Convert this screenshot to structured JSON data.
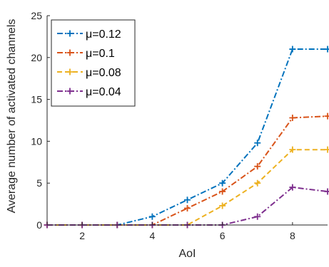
{
  "chart_data": {
    "type": "line",
    "title": "",
    "xlabel": "AoI",
    "ylabel": "Average number of activated channels",
    "xlim": [
      1,
      9
    ],
    "ylim": [
      0,
      25
    ],
    "xticks": [
      2,
      4,
      6,
      8
    ],
    "yticks": [
      0,
      5,
      10,
      15,
      20,
      25
    ],
    "grid": false,
    "legend_position": "top-left",
    "x": [
      1,
      2,
      3,
      4,
      5,
      6,
      7,
      8,
      9
    ],
    "series": [
      {
        "name": "μ=0.12",
        "color": "#0072BD",
        "dash": "dashdot",
        "values": [
          0,
          0,
          0,
          1,
          3,
          5,
          9.8,
          21,
          21
        ]
      },
      {
        "name": "μ=0.1",
        "color": "#D95319",
        "dash": "dashdot",
        "values": [
          0,
          0,
          0,
          0,
          2,
          4,
          7,
          12.8,
          13
        ]
      },
      {
        "name": "μ=0.08",
        "color": "#EDB120",
        "dash": "dashed",
        "values": [
          0,
          0,
          0,
          0,
          0,
          2.3,
          5,
          9,
          9
        ]
      },
      {
        "name": "μ=0.04",
        "color": "#7E2F8E",
        "dash": "dashdot",
        "values": [
          0,
          0,
          0,
          0,
          0,
          0,
          1,
          4.5,
          4
        ]
      }
    ]
  }
}
